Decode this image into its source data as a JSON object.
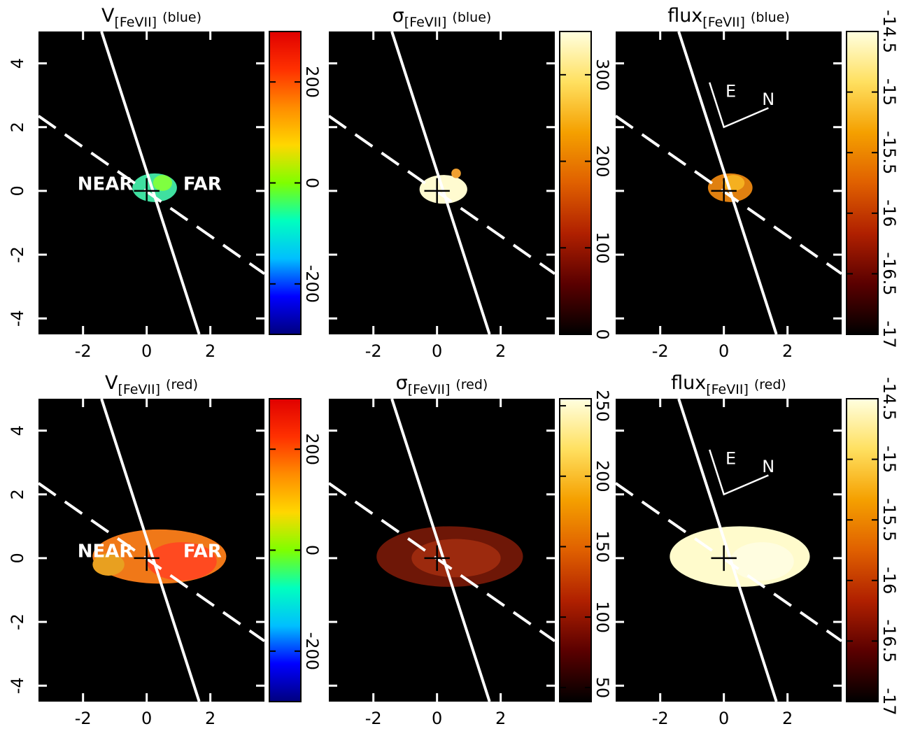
{
  "chart_data": [
    {
      "type": "image",
      "title": "V",
      "title_subscript": "[FeVII]",
      "title_suffix": "(blue)",
      "xlim": [
        -3.4,
        3.7
      ],
      "ylim": [
        -4.5,
        5.0
      ],
      "xticks": [
        -2,
        0,
        2
      ],
      "yticks": [
        -4,
        -2,
        0,
        2,
        4
      ],
      "yticklabels": true,
      "colorbar": {
        "lim": [
          -300,
          300
        ],
        "ticks": [
          -200,
          0,
          200
        ],
        "colors": [
          "#00007f",
          "#0000ff",
          "#00bfff",
          "#00ffbf",
          "#7fff00",
          "#ffd700",
          "#ff8c00",
          "#ff3000",
          "#e00000"
        ]
      },
      "annotations": [
        "NEAR",
        "FAR"
      ]
    },
    {
      "type": "image",
      "title": "σ",
      "title_subscript": "[FeVII]",
      "title_suffix": "(blue)",
      "xlim": [
        -3.4,
        3.7
      ],
      "ylim": [
        -4.5,
        5.0
      ],
      "xticks": [
        -2,
        0,
        2
      ],
      "yticks": [
        -4,
        -2,
        0,
        2,
        4
      ],
      "yticklabels": false,
      "colorbar": {
        "lim": [
          0,
          350
        ],
        "ticks": [
          0,
          100,
          200,
          300
        ],
        "colors": [
          "#000000",
          "#5a0000",
          "#b02000",
          "#e06000",
          "#f5a000",
          "#ffe060",
          "#ffffe0"
        ]
      }
    },
    {
      "type": "image",
      "title": "flux",
      "title_subscript": "[FeVII]",
      "title_suffix": "(blue)",
      "xlim": [
        -3.4,
        3.7
      ],
      "ylim": [
        -4.5,
        5.0
      ],
      "xticks": [
        -2,
        0,
        2
      ],
      "yticks": [
        -4,
        -2,
        0,
        2,
        4
      ],
      "yticklabels": false,
      "colorbar": {
        "lim": [
          -17,
          -14.5
        ],
        "ticks": [
          -17,
          -16.5,
          -16,
          -15.5,
          -15,
          -14.5
        ],
        "colors": [
          "#000000",
          "#5a0000",
          "#b02000",
          "#e06000",
          "#f5a000",
          "#ffe060",
          "#ffffe0"
        ]
      },
      "compass": [
        "E",
        "N"
      ]
    },
    {
      "type": "image",
      "title": "V",
      "title_subscript": "[FeVII]",
      "title_suffix": "(red)",
      "xlim": [
        -3.4,
        3.7
      ],
      "ylim": [
        -4.5,
        5.0
      ],
      "xticks": [
        -2,
        0,
        2
      ],
      "yticks": [
        -4,
        -2,
        0,
        2,
        4
      ],
      "yticklabels": true,
      "colorbar": {
        "lim": [
          -300,
          300
        ],
        "ticks": [
          -200,
          0,
          200
        ],
        "colors": [
          "#00007f",
          "#0000ff",
          "#00bfff",
          "#00ffbf",
          "#7fff00",
          "#ffd700",
          "#ff8c00",
          "#ff3000",
          "#e00000"
        ]
      },
      "annotations": [
        "NEAR",
        "FAR"
      ]
    },
    {
      "type": "image",
      "title": "σ",
      "title_subscript": "[FeVII]",
      "title_suffix": "(red)",
      "xlim": [
        -3.4,
        3.7
      ],
      "ylim": [
        -4.5,
        5.0
      ],
      "xticks": [
        -2,
        0,
        2
      ],
      "yticks": [
        -4,
        -2,
        0,
        2,
        4
      ],
      "yticklabels": false,
      "colorbar": {
        "lim": [
          40,
          255
        ],
        "ticks": [
          50,
          100,
          150,
          200,
          250
        ],
        "colors": [
          "#000000",
          "#5a0000",
          "#b02000",
          "#e06000",
          "#f5a000",
          "#ffe060",
          "#ffffe0"
        ]
      }
    },
    {
      "type": "image",
      "title": "flux",
      "title_subscript": "[FeVII]",
      "title_suffix": "(red)",
      "xlim": [
        -3.4,
        3.7
      ],
      "ylim": [
        -4.5,
        5.0
      ],
      "xticks": [
        -2,
        0,
        2
      ],
      "yticks": [
        -4,
        -2,
        0,
        2,
        4
      ],
      "yticklabels": false,
      "colorbar": {
        "lim": [
          -17,
          -14.5
        ],
        "ticks": [
          -17,
          -16.5,
          -16,
          -15.5,
          -15,
          -14.5
        ],
        "colors": [
          "#000000",
          "#5a0000",
          "#b02000",
          "#e06000",
          "#f5a000",
          "#ffe060",
          "#ffffe0"
        ]
      },
      "compass": [
        "E",
        "N"
      ]
    }
  ]
}
